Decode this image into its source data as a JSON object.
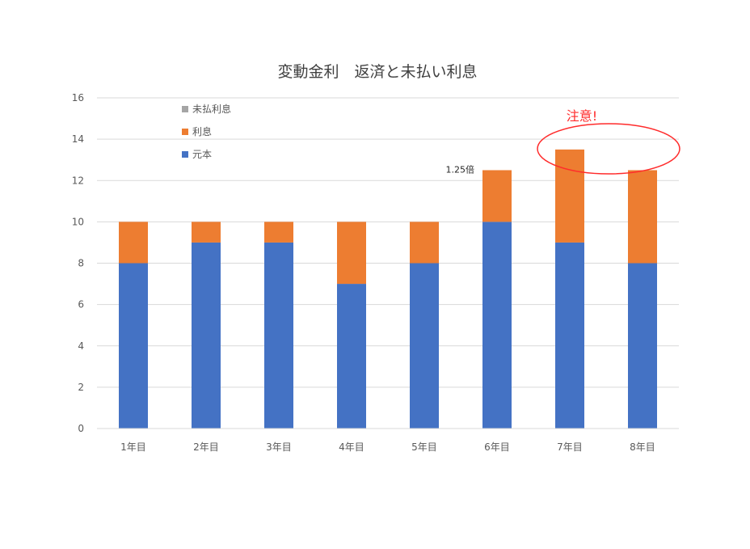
{
  "chart_data": {
    "type": "bar",
    "stacked": true,
    "title": "変動金利　返済と未払い利息",
    "xlabel": "",
    "ylabel": "",
    "ylim": [
      0,
      16
    ],
    "yticks": [
      0,
      2,
      4,
      6,
      8,
      10,
      12,
      14,
      16
    ],
    "grid": true,
    "legend_position": "top-left",
    "categories": [
      "1年目",
      "2年目",
      "3年目",
      "4年目",
      "5年目",
      "6年目",
      "7年目",
      "8年目"
    ],
    "series": [
      {
        "name": "元本",
        "color": "#4472c4",
        "values": [
          8,
          9,
          9,
          7,
          8,
          10,
          9,
          8
        ]
      },
      {
        "name": "利息",
        "color": "#ed7d31",
        "values": [
          2,
          1,
          1,
          3,
          2,
          2.5,
          4.5,
          4.5
        ]
      },
      {
        "name": "未払利息",
        "color": "#a5a5a5",
        "values": [
          0,
          0,
          0,
          0,
          0,
          0,
          0,
          0
        ]
      }
    ],
    "annotations": [
      {
        "text": "1.25倍",
        "category": "6年目",
        "value": 12.5
      },
      {
        "text": "注意!",
        "category": "7年目",
        "color": "#ff2b2b"
      }
    ]
  }
}
